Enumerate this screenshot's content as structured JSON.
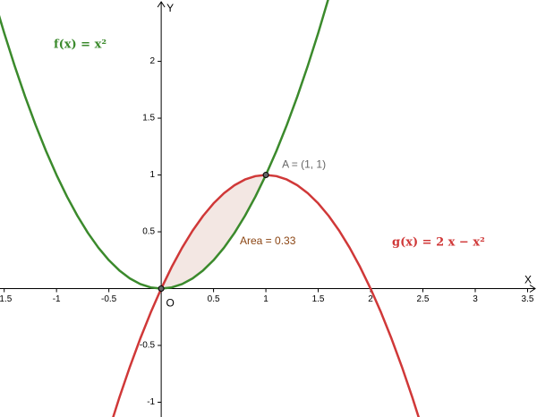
{
  "chart_data": {
    "type": "function-plot",
    "xlabel": "X",
    "ylabel": "Y",
    "xlim": [
      -1.54,
      3.59
    ],
    "ylim": [
      -1.13,
      2.54
    ],
    "xticks": [
      -1.5,
      -1,
      -0.5,
      0.5,
      1,
      1.5,
      2,
      2.5,
      3,
      3.5
    ],
    "yticks": [
      -1,
      -0.5,
      0.5,
      1,
      1.5,
      2
    ],
    "series": [
      {
        "name": "f(x) = x²",
        "color": "#3b8a2c",
        "x": [
          -1.6,
          -1.5,
          -1.4,
          -1.3,
          -1.2,
          -1.1,
          -1,
          -0.9,
          -0.8,
          -0.7,
          -0.6,
          -0.5,
          -0.4,
          -0.3,
          -0.2,
          -0.1,
          0,
          0.1,
          0.2,
          0.3,
          0.4,
          0.5,
          0.6,
          0.7,
          0.8,
          0.9,
          1,
          1.1,
          1.2,
          1.3,
          1.4,
          1.5,
          1.6
        ],
        "values": [
          2.56,
          2.25,
          1.96,
          1.69,
          1.44,
          1.21,
          1,
          0.81,
          0.64,
          0.49,
          0.36,
          0.25,
          0.16,
          0.09,
          0.04,
          0.01,
          0,
          0.01,
          0.04,
          0.09,
          0.16,
          0.25,
          0.36,
          0.49,
          0.64,
          0.81,
          1,
          1.21,
          1.44,
          1.69,
          1.96,
          2.25,
          2.56
        ]
      },
      {
        "name": "g(x) = 2 x − x²",
        "color": "#d03838",
        "x": [
          -0.5,
          -0.4,
          -0.3,
          -0.2,
          -0.1,
          0,
          0.1,
          0.2,
          0.3,
          0.4,
          0.5,
          0.6,
          0.7,
          0.8,
          0.9,
          1,
          1.1,
          1.2,
          1.3,
          1.4,
          1.5,
          1.6,
          1.7,
          1.8,
          1.9,
          2,
          2.1,
          2.2,
          2.3,
          2.4,
          2.5
        ],
        "values": [
          -1.25,
          -0.96,
          -0.69,
          -0.44,
          -0.21,
          0,
          0.19,
          0.36,
          0.51,
          0.64,
          0.75,
          0.84,
          0.91,
          0.96,
          0.99,
          1,
          0.99,
          0.96,
          0.91,
          0.84,
          0.75,
          0.64,
          0.51,
          0.36,
          0.19,
          0,
          -0.21,
          -0.44,
          -0.69,
          -0.96,
          -1.25
        ]
      }
    ],
    "area": {
      "label": "Area = 0.33",
      "from": 0,
      "to": 1,
      "color": "#8b4513"
    },
    "points": [
      {
        "label": "A = (1, 1)",
        "x": 1,
        "y": 1
      },
      {
        "label": "O",
        "x": 0,
        "y": 0
      }
    ]
  }
}
